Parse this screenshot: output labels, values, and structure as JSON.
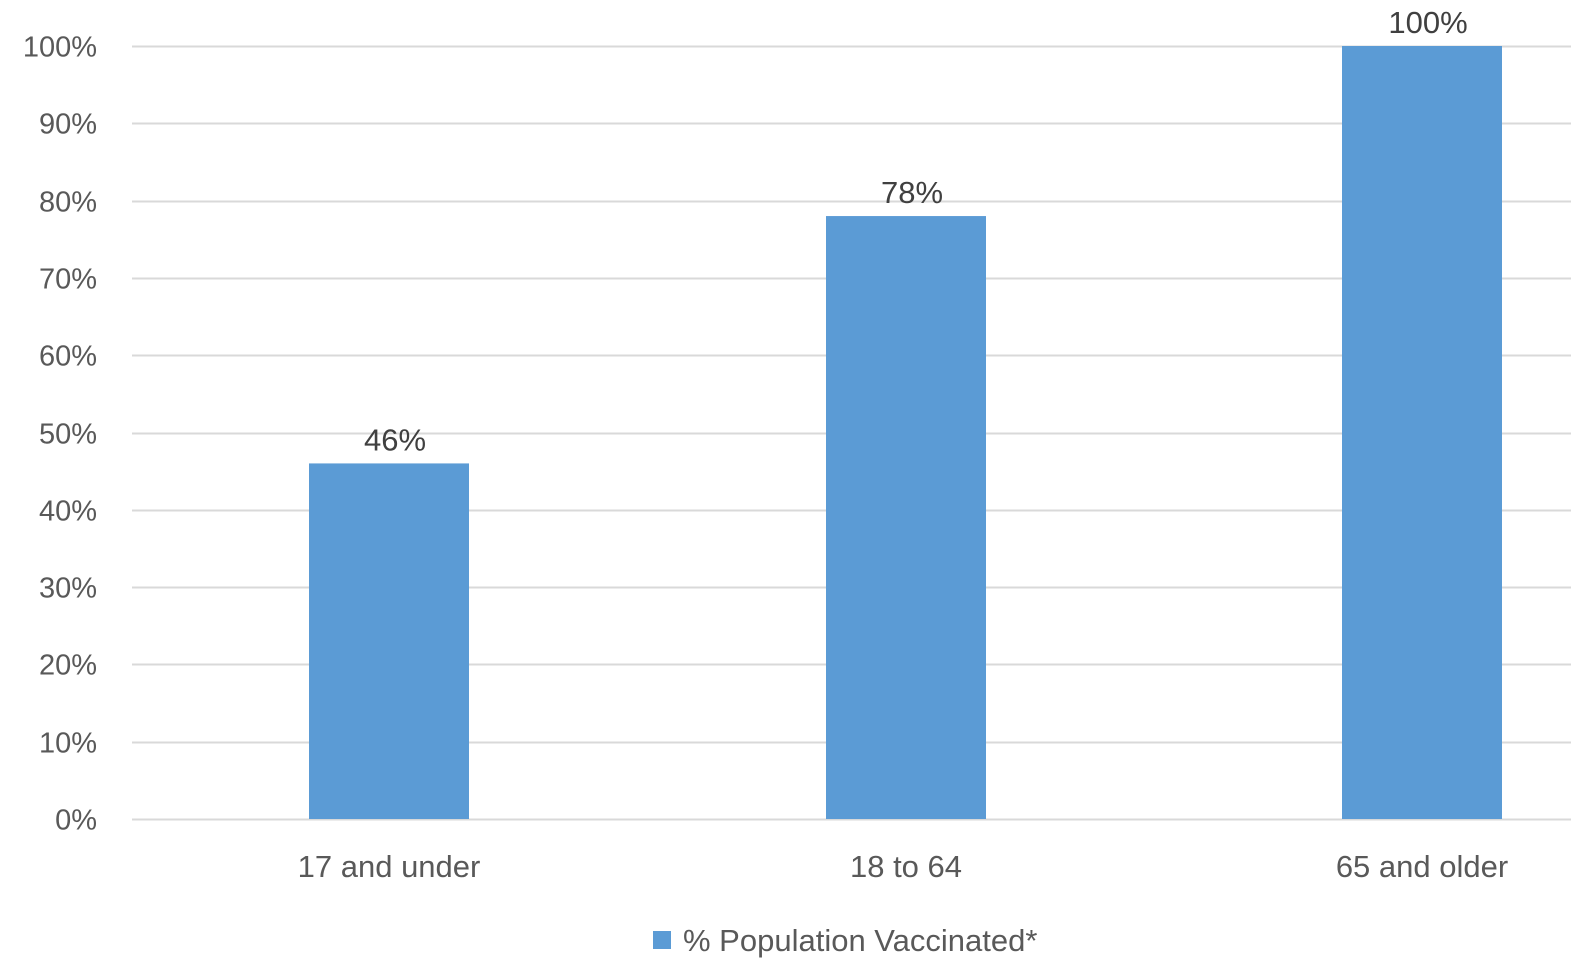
{
  "chart_data": {
    "type": "bar",
    "title": "",
    "xlabel": "",
    "ylabel": "",
    "categories": [
      "17 and under",
      "18 to 64",
      "65 and older"
    ],
    "series": [
      {
        "name": "% Population Vaccinated*",
        "values": [
          0.46,
          0.78,
          1.0
        ],
        "color": "#5b9bd5"
      }
    ],
    "data_labels": [
      "46%",
      "78%",
      "100%"
    ],
    "ylim": [
      0,
      1.0
    ],
    "y_ticks": [
      0,
      0.1,
      0.2,
      0.3,
      0.4,
      0.5,
      0.6,
      0.7,
      0.8,
      0.9,
      1.0
    ],
    "y_tick_labels": [
      "0%",
      "10%",
      "20%",
      "30%",
      "40%",
      "50%",
      "60%",
      "70%",
      "80%",
      "90%",
      "100%"
    ],
    "grid": true,
    "gridline_color": "#d9d9d9",
    "legend_position": "bottom"
  }
}
